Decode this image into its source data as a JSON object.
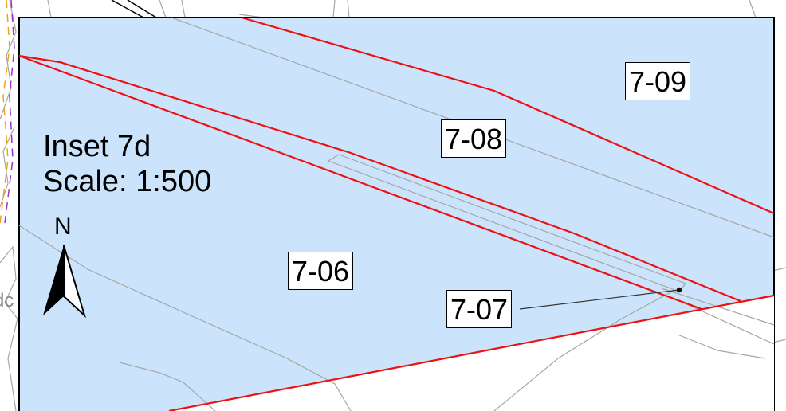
{
  "inset": {
    "title": "Inset 7d",
    "scale": "Scale: 1:500"
  },
  "north_arrow": {
    "letter": "N"
  },
  "parcels": [
    {
      "id": "7-06"
    },
    {
      "id": "7-07"
    },
    {
      "id": "7-08"
    },
    {
      "id": "7-09"
    }
  ],
  "background_label_fragment": "dc",
  "colors": {
    "inset_fill": "#cce4fb",
    "boundary": "#ee1111",
    "base_lines": "#a6a6a6",
    "frame": "#000000",
    "dash_orange": "#f0a21a",
    "dash_purple": "#9933cc"
  }
}
